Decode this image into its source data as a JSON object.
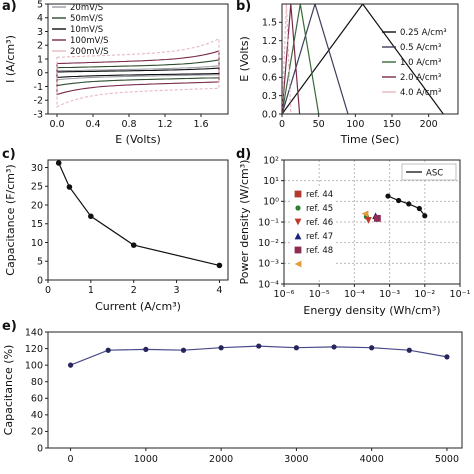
{
  "panel_labels": {
    "a": "a)",
    "b": "b)",
    "c": "c)",
    "d": "d)",
    "e": "e)"
  },
  "chart_data": [
    {
      "panel": "a",
      "type": "line",
      "xlabel": "E (Volts)",
      "ylabel": "I (A/cm³)",
      "xlim": [
        -0.1,
        1.9
      ],
      "ylim": [
        -3,
        5
      ],
      "xticks": [
        "0.0",
        "0.4",
        "0.8",
        "1.2",
        "1.6"
      ],
      "xtick_values": [
        0.0,
        0.4,
        0.8,
        1.2,
        1.6
      ],
      "yticks": [
        "-3",
        "-2",
        "-1",
        "0",
        "1",
        "2",
        "3",
        "4",
        "5"
      ],
      "ytick_values": [
        -3,
        -2,
        -1,
        0,
        1,
        2,
        3,
        4,
        5
      ],
      "legend_position": "top-left",
      "series": [
        {
          "name": "20mV/S",
          "color": "#9aa0a6",
          "half_width": 0.25,
          "slope": 0.12,
          "edge_rise": 0.15
        },
        {
          "name": "50mV/S",
          "color": "#2e4d2e",
          "half_width": 0.5,
          "slope": 0.15,
          "edge_rise": 0.3
        },
        {
          "name": "10mV/S",
          "color": "#111111",
          "half_width": 0.15,
          "slope": 0.1,
          "edge_rise": 0.1
        },
        {
          "name": "100mV/S",
          "color": "#7a2b4a",
          "half_width": 0.85,
          "slope": 0.2,
          "edge_rise": 0.55
        },
        {
          "name": "200mV/S",
          "color": "#e8b8c0",
          "half_width": 1.35,
          "slope": 0.25,
          "edge_rise": 0.9
        }
      ]
    },
    {
      "panel": "b",
      "type": "line",
      "xlabel": "Time (Sec)",
      "ylabel": "E (Volts)",
      "xlim": [
        0,
        240
      ],
      "ylim": [
        0,
        1.8
      ],
      "xticks": [
        "0",
        "50",
        "100",
        "150",
        "200"
      ],
      "xtick_values": [
        0,
        50,
        100,
        150,
        200
      ],
      "yticks": [
        "0.0",
        "0.3",
        "0.6",
        "0.9",
        "1.2",
        "1.5"
      ],
      "ytick_values": [
        0.0,
        0.3,
        0.6,
        0.9,
        1.2,
        1.5
      ],
      "legend_position": "right",
      "series": [
        {
          "name": "0.25 A/cm³",
          "color": "#111111",
          "x": [
            0,
            110,
            220
          ],
          "y": [
            0,
            1.8,
            0
          ]
        },
        {
          "name": "0.5 A/cm³",
          "color": "#3d3d5c",
          "x": [
            0,
            45,
            90
          ],
          "y": [
            0,
            1.8,
            0
          ]
        },
        {
          "name": "1.0 A/cm³",
          "color": "#3a6a3a",
          "x": [
            0,
            25,
            50
          ],
          "y": [
            0,
            1.8,
            0
          ]
        },
        {
          "name": "2.0 A/cm³",
          "color": "#7a2b4a",
          "x": [
            0,
            12,
            24
          ],
          "y": [
            0,
            1.8,
            0
          ]
        },
        {
          "name": "4.0 A/cm³",
          "color": "#e8b8c0",
          "x": [
            0,
            6,
            12
          ],
          "y": [
            0,
            1.8,
            0
          ]
        }
      ]
    },
    {
      "panel": "c",
      "type": "line",
      "xlabel": "Current (A/cm³)",
      "ylabel": "Capacitance (F/cm³)",
      "xlim": [
        0,
        4.2
      ],
      "ylim": [
        0,
        32
      ],
      "xticks": [
        "0",
        "1",
        "2",
        "3",
        "4"
      ],
      "xtick_values": [
        0,
        1,
        2,
        3,
        4
      ],
      "yticks": [
        "0",
        "5",
        "10",
        "15",
        "20",
        "25",
        "30"
      ],
      "ytick_values": [
        0,
        5,
        10,
        15,
        20,
        25,
        30
      ],
      "x": [
        0.25,
        0.5,
        1,
        2,
        4
      ],
      "y": [
        31.2,
        24.8,
        17.0,
        9.3,
        3.9
      ]
    },
    {
      "panel": "d",
      "type": "scatter",
      "xlabel": "Energy density (Wh/cm³)",
      "ylabel": "Power density (W/cm³)",
      "log_x": true,
      "log_y": true,
      "xlim_exp": [
        -6,
        -1
      ],
      "ylim_exp": [
        -4,
        2
      ],
      "xticks": [
        "10⁻⁶",
        "10⁻⁵",
        "10⁻⁴",
        "10⁻³",
        "10⁻²",
        "10⁻¹"
      ],
      "xtick_exps": [
        -6,
        -5,
        -4,
        -3,
        -2,
        -1
      ],
      "yticks": [
        "10⁻⁴",
        "10⁻³",
        "10⁻²",
        "10⁻¹",
        "10⁰",
        "10¹",
        "10²"
      ],
      "ytick_exps": [
        -4,
        -3,
        -2,
        -1,
        0,
        1,
        2
      ],
      "legend_entries": [
        {
          "name": "ref. 44",
          "color": "#b03a2e",
          "marker": "square"
        },
        {
          "name": "ref. 45",
          "color": "#2e7d32",
          "marker": "star"
        },
        {
          "name": "ref. 46",
          "color": "#c0392b",
          "marker": "triangle-down"
        },
        {
          "name": "ref. 47",
          "color": "#1a237e",
          "marker": "triangle-up"
        },
        {
          "name": "ref. 48",
          "color": "#8e2d52",
          "marker": "square"
        },
        {
          "name": "",
          "color": "#e69a3a",
          "marker": "triangle-left"
        }
      ],
      "asc": {
        "name": "ASC",
        "x": [
          0.0009,
          0.0018,
          0.0035,
          0.007,
          0.01
        ],
        "y": [
          1.8,
          1.1,
          0.75,
          0.45,
          0.2
        ]
      },
      "refs": [
        {
          "x": 0.00022,
          "y": 0.18,
          "color": "#2e7d32",
          "marker": "star"
        },
        {
          "x": 0.00025,
          "y": 0.12,
          "color": "#c0392b",
          "marker": "triangle-down"
        },
        {
          "x": 0.0004,
          "y": 0.2,
          "color": "#1a237e",
          "marker": "triangle-up"
        },
        {
          "x": 0.00045,
          "y": 0.15,
          "color": "#8e2d52",
          "marker": "square"
        },
        {
          "x": 0.0002,
          "y": 0.25,
          "color": "#e69a3a",
          "marker": "triangle-left"
        }
      ]
    },
    {
      "panel": "e",
      "type": "line",
      "xlabel": "",
      "ylabel": "Capacitance (%)",
      "xlim": [
        -300,
        5200
      ],
      "ylim": [
        0,
        140
      ],
      "xticks": [
        "0",
        "1000",
        "2000",
        "3000",
        "4000",
        "5000"
      ],
      "xtick_values": [
        0,
        1000,
        2000,
        3000,
        4000,
        5000
      ],
      "yticks": [
        "0",
        "20",
        "40",
        "60",
        "80",
        "100",
        "120",
        "140"
      ],
      "ytick_values": [
        0,
        20,
        40,
        60,
        80,
        100,
        120,
        140
      ],
      "x": [
        0,
        500,
        1000,
        1500,
        2000,
        2500,
        3000,
        3500,
        4000,
        4500,
        5000
      ],
      "y": [
        100,
        118,
        119,
        118,
        121,
        123,
        121,
        122,
        121,
        118,
        110
      ]
    }
  ]
}
